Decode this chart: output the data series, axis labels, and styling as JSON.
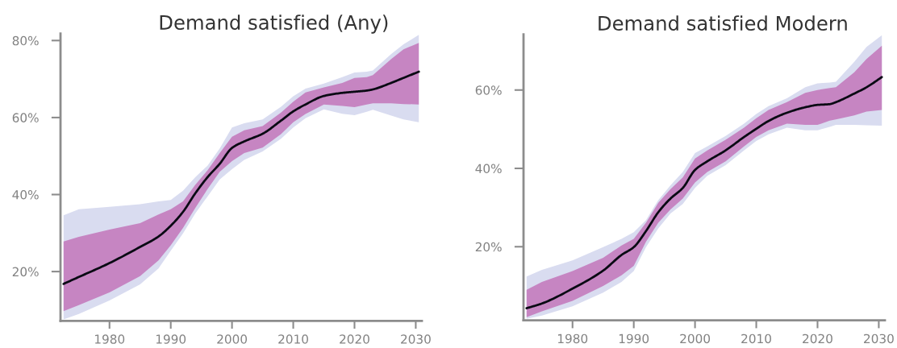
{
  "chart_data": [
    {
      "type": "line",
      "title": "Demand satisfied (Any)",
      "x": [
        1972.5,
        1975,
        1980,
        1985,
        1988,
        1990,
        1992,
        1994,
        1996,
        1998,
        2000,
        2002,
        2005,
        2008,
        2010,
        2012,
        2015,
        2018,
        2020,
        2022,
        2023,
        2026,
        2028,
        2030.5
      ],
      "xlim": [
        1972,
        2031
      ],
      "xticks": [
        1980,
        1990,
        2000,
        2010,
        2020,
        2030
      ],
      "ylim": [
        7.2,
        81.8
      ],
      "yticks": [
        {
          "value": 20,
          "label": "20%"
        },
        {
          "value": 40,
          "label": "40%"
        },
        {
          "value": 60,
          "label": "60%"
        },
        {
          "value": 80,
          "label": "80%"
        }
      ],
      "series": [
        {
          "color": "#d9dcf0",
          "values": [
            null,
            null,
            null,
            null,
            null,
            null,
            null,
            null,
            null,
            null,
            null,
            null,
            null,
            null,
            null,
            null,
            null,
            null,
            null,
            null,
            null,
            null,
            null,
            null
          ],
          "lower": [
            7.6,
            9.0,
            12.5,
            16.7,
            20.8,
            25.4,
            29.9,
            35.1,
            39.5,
            43.9,
            46.6,
            49.0,
            51.2,
            54.5,
            57.4,
            59.8,
            62.1,
            61.0,
            60.6,
            61.5,
            62.0,
            60.5,
            59.5,
            58.8
          ],
          "upper": [
            34.6,
            36.2,
            36.8,
            37.5,
            38.2,
            38.6,
            41.0,
            44.5,
            47.5,
            52.0,
            57.4,
            58.5,
            59.5,
            62.8,
            65.5,
            67.5,
            68.8,
            70.5,
            71.7,
            71.9,
            72.2,
            76.5,
            79.0,
            81.5
          ]
        },
        {
          "color": "#c685c2",
          "values": [
            null,
            null,
            null,
            null,
            null,
            null,
            null,
            null,
            null,
            null,
            null,
            null,
            null,
            null,
            null,
            null,
            null,
            null,
            null,
            null,
            null,
            null,
            null,
            null
          ],
          "lower": [
            9.7,
            11.3,
            14.6,
            18.8,
            22.9,
            26.8,
            31.3,
            36.5,
            41.4,
            45.9,
            48.7,
            50.8,
            52.2,
            55.7,
            58.8,
            60.9,
            63.4,
            63.0,
            62.7,
            63.4,
            63.7,
            63.7,
            63.5,
            63.4
          ],
          "upper": [
            27.8,
            29.0,
            30.9,
            32.6,
            34.8,
            36.2,
            38.2,
            42.5,
            46.3,
            50.8,
            55.0,
            56.7,
            57.8,
            61.3,
            64.1,
            66.5,
            67.8,
            69.0,
            70.3,
            70.5,
            71.0,
            75.2,
            77.7,
            79.4
          ]
        },
        {
          "color": "#0a0a14",
          "values": [
            16.8,
            18.6,
            22.2,
            26.4,
            29.1,
            31.9,
            35.5,
            40.3,
            44.5,
            48.0,
            52.1,
            53.8,
            55.8,
            59.2,
            61.6,
            63.4,
            65.6,
            66.4,
            66.7,
            67.0,
            67.3,
            69.0,
            70.3,
            71.9
          ]
        }
      ]
    },
    {
      "type": "line",
      "title": "Demand satisfied Modern",
      "x": [
        1972.5,
        1975,
        1980,
        1985,
        1988,
        1990,
        1992,
        1994,
        1996,
        1998,
        2000,
        2002,
        2005,
        2008,
        2010,
        2012,
        2015,
        2018,
        2020,
        2022,
        2023,
        2026,
        2028,
        2030.5
      ],
      "xlim": [
        1972,
        2031
      ],
      "xticks": [
        1980,
        1990,
        2000,
        2010,
        2020,
        2030
      ],
      "ylim": [
        1.2,
        74.2
      ],
      "yticks": [
        {
          "value": 20,
          "label": "20%"
        },
        {
          "value": 40,
          "label": "40%"
        },
        {
          "value": 60,
          "label": "60%"
        }
      ],
      "series": [
        {
          "color": "#d9dcf0",
          "values": [
            null,
            null,
            null,
            null,
            null,
            null,
            null,
            null,
            null,
            null,
            null,
            null,
            null,
            null,
            null,
            null,
            null,
            null,
            null,
            null,
            null,
            null,
            null,
            null
          ],
          "lower": [
            1.6,
            2.4,
            4.8,
            8.3,
            11.0,
            13.8,
            19.9,
            24.7,
            28.5,
            30.9,
            35.0,
            38.1,
            40.8,
            44.6,
            47.0,
            48.7,
            50.4,
            49.7,
            49.7,
            50.6,
            51.1,
            51.1,
            51.0,
            50.9
          ],
          "upper": [
            12.4,
            14.1,
            16.5,
            19.9,
            22.0,
            23.7,
            26.8,
            31.9,
            35.7,
            39.1,
            43.9,
            45.6,
            48.3,
            51.4,
            53.9,
            55.9,
            57.9,
            60.7,
            61.7,
            61.9,
            62.1,
            67.2,
            71.0,
            74.0
          ]
        },
        {
          "color": "#c685c2",
          "values": [
            null,
            null,
            null,
            null,
            null,
            null,
            null,
            null,
            null,
            null,
            null,
            null,
            null,
            null,
            null,
            null,
            null,
            null,
            null,
            null,
            null,
            null,
            null,
            null
          ],
          "lower": [
            2.0,
            3.5,
            6.2,
            10.0,
            12.7,
            15.1,
            21.3,
            26.1,
            29.5,
            32.3,
            36.4,
            39.1,
            41.8,
            45.6,
            48.0,
            49.7,
            51.4,
            51.1,
            51.1,
            52.2,
            52.5,
            53.5,
            54.5,
            54.9
          ],
          "upper": [
            9.0,
            11.0,
            13.8,
            17.2,
            20.3,
            22.0,
            26.1,
            31.2,
            34.7,
            37.7,
            42.5,
            44.6,
            47.3,
            50.4,
            52.8,
            54.9,
            56.9,
            59.3,
            60.0,
            60.5,
            60.7,
            64.5,
            67.9,
            71.3
          ]
        },
        {
          "color": "#0a0a14",
          "values": [
            4.3,
            5.5,
            9.3,
            13.9,
            17.9,
            19.9,
            24.0,
            28.8,
            32.3,
            35.0,
            39.6,
            41.8,
            44.6,
            48.0,
            50.1,
            52.1,
            54.2,
            55.6,
            56.2,
            56.4,
            56.9,
            59.1,
            60.7,
            63.3
          ]
        }
      ]
    }
  ]
}
